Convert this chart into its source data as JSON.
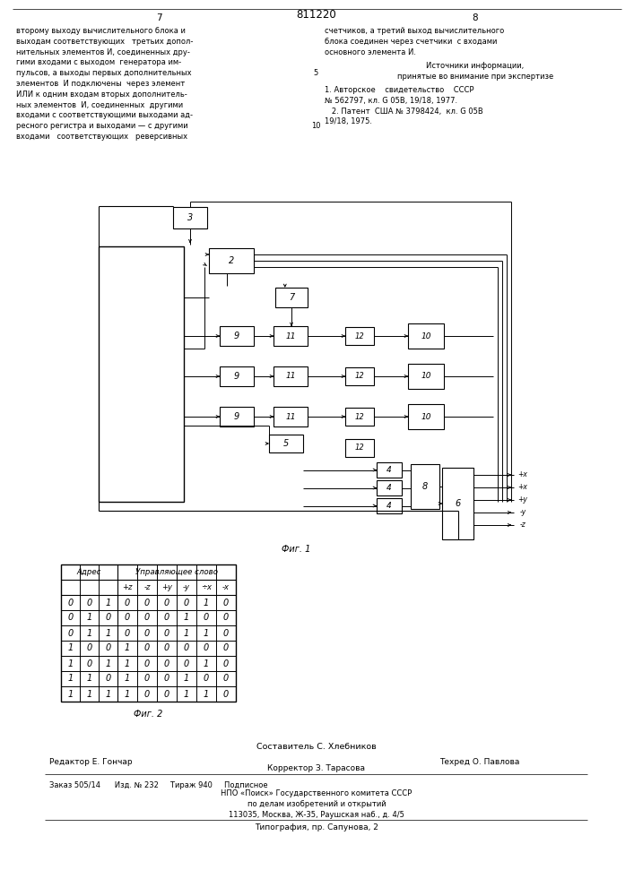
{
  "bg_color": "#ffffff",
  "title_num": "811220",
  "page_nums": [
    "7",
    "8"
  ],
  "left_text_lines": [
    "второму выходу вычислительного блока и",
    "выходам соответствующих   третьих допол-",
    "нительных элементов И, соединенных дру-",
    "гими входами с выходом  генератора им-",
    "пульсов, а выходы первых дополнительных",
    "элементов  И подключены  через элемент",
    "ИЛИ к одним входам вторых дополнитель-",
    "ных элементов  И, соединенных  другими",
    "входами с соответствующими выходами ад-",
    "ресного регистра и выходами — с другими",
    "входами   соответствующих   реверсивных"
  ],
  "right_text_lines": [
    "счетчиков, а третий выход вычислительного",
    "блока соединен через счетчики  с входами",
    "основного элемента И."
  ],
  "sources_title_lines": [
    "Источники информации,",
    "принятые во внимание при экспертизе"
  ],
  "sources_lines": [
    "1. Авторское    свидетельство    СССР",
    "№ 562797, кл. G 05В, 19/18, 1977.",
    "   2. Патент  США № 3798424,  кл. G 05В",
    "19/18, 1975."
  ],
  "line_num_5": "5",
  "line_num_10": "10",
  "fig1_label": "Фиг. 1",
  "fig2_label": "Фиг. 2",
  "table_header1": "Адрес",
  "table_header2": "Управляющее слово",
  "table_cols": [
    "+z",
    "-z",
    "+y",
    "-y",
    "÷x",
    "-x"
  ],
  "table_data": [
    [
      "0",
      "0",
      "1",
      "0",
      "0",
      "0",
      "0",
      "1",
      "0"
    ],
    [
      "0",
      "1",
      "0",
      "0",
      "0",
      "0",
      "1",
      "0",
      "0"
    ],
    [
      "0",
      "1",
      "1",
      "0",
      "0",
      "0",
      "1",
      "1",
      "0"
    ],
    [
      "1",
      "0",
      "0",
      "1",
      "0",
      "0",
      "0",
      "0",
      "0"
    ],
    [
      "1",
      "0",
      "1",
      "1",
      "0",
      "0",
      "0",
      "1",
      "0"
    ],
    [
      "1",
      "1",
      "0",
      "1",
      "0",
      "0",
      "1",
      "0",
      "0"
    ],
    [
      "1",
      "1",
      "1",
      "1",
      "0",
      "0",
      "1",
      "1",
      "0"
    ]
  ],
  "bottom_text1": "Составитель С. Хлебников",
  "bottom_text2": "Редактор Е. Гончар",
  "bottom_text3": "Техред О. Павлова",
  "bottom_text4": "Корректор З. Тарасова",
  "bottom_text5": "Заказ 505/14      Изд. № 232     Тираж 940     Подписное",
  "bottom_text6": "НПО «Поиск» Государственного комитета СССР",
  "bottom_text7": "по делам изобретений и открытий",
  "bottom_text8": "113035, Москва, Ж-35, Раушская наб., д. 4/5",
  "bottom_text9": "Типография, пр. Сапунова, 2",
  "out_labels": [
    "+x",
    "+x",
    "+y",
    "-y",
    "-z"
  ]
}
